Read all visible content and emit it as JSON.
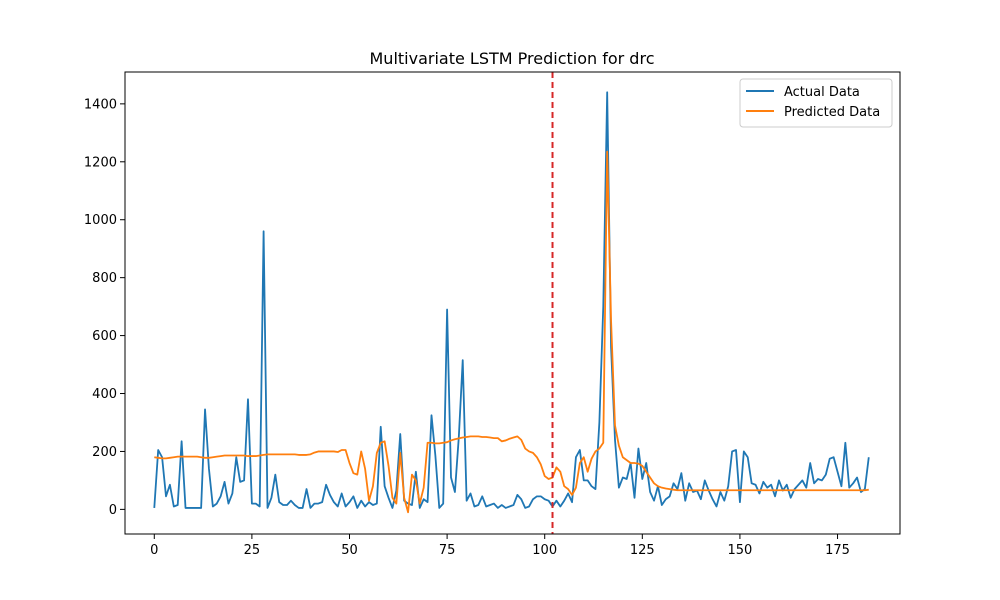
{
  "chart_data": {
    "type": "line",
    "title": "Multivariate LSTM Prediction for drc",
    "xlabel": "",
    "ylabel": "",
    "xlim": [
      -7.5,
      191
    ],
    "ylim": [
      -85,
      1510
    ],
    "x_ticks": [
      0,
      25,
      50,
      75,
      100,
      125,
      150,
      175
    ],
    "y_ticks": [
      0,
      200,
      400,
      600,
      800,
      1000,
      1200,
      1400
    ],
    "grid": false,
    "legend": {
      "position": "top-right"
    },
    "vline": {
      "x": 102,
      "color": "#d62728",
      "style": "dashed"
    },
    "series": [
      {
        "name": "Actual Data",
        "color": "#1f77b4",
        "x_start": 0,
        "values": [
          5,
          205,
          180,
          45,
          85,
          10,
          15,
          235,
          5,
          5,
          5,
          5,
          5,
          345,
          140,
          10,
          20,
          45,
          95,
          20,
          55,
          180,
          95,
          100,
          380,
          20,
          20,
          10,
          960,
          5,
          40,
          120,
          25,
          15,
          15,
          30,
          15,
          5,
          5,
          70,
          5,
          20,
          20,
          25,
          85,
          50,
          25,
          10,
          55,
          10,
          25,
          45,
          5,
          30,
          10,
          25,
          15,
          20,
          285,
          80,
          40,
          5,
          65,
          260,
          30,
          20,
          15,
          130,
          5,
          35,
          25,
          325,
          185,
          5,
          20,
          690,
          110,
          60,
          250,
          515,
          30,
          55,
          10,
          15,
          45,
          10,
          15,
          20,
          5,
          15,
          5,
          10,
          15,
          50,
          35,
          5,
          10,
          35,
          45,
          45,
          35,
          30,
          10,
          30,
          10,
          30,
          55,
          25,
          180,
          205,
          100,
          100,
          80,
          70,
          300,
          700,
          1440,
          560,
          240,
          75,
          110,
          105,
          160,
          40,
          210,
          105,
          160,
          60,
          30,
          80,
          15,
          35,
          45,
          90,
          70,
          125,
          30,
          90,
          60,
          65,
          35,
          100,
          65,
          35,
          10,
          60,
          30,
          80,
          200,
          205,
          25,
          200,
          180,
          90,
          85,
          55,
          95,
          75,
          85,
          45,
          100,
          65,
          85,
          40,
          70,
          85,
          100,
          75,
          160,
          90,
          105,
          100,
          120,
          175,
          180,
          130,
          80,
          230,
          75,
          90,
          110,
          60,
          70,
          180
        ]
      },
      {
        "name": "Predicted Data",
        "color": "#ff7f0e",
        "x_start": 0,
        "values": [
          180,
          178,
          176,
          176,
          178,
          180,
          182,
          182,
          182,
          182,
          182,
          182,
          180,
          178,
          178,
          180,
          182,
          184,
          186,
          186,
          186,
          186,
          186,
          186,
          184,
          184,
          184,
          186,
          188,
          190,
          190,
          190,
          190,
          190,
          190,
          190,
          190,
          188,
          188,
          188,
          190,
          196,
          200,
          200,
          200,
          200,
          200,
          198,
          205,
          205,
          160,
          125,
          120,
          200,
          140,
          30,
          80,
          195,
          230,
          235,
          150,
          40,
          20,
          195,
          40,
          -10,
          120,
          100,
          20,
          75,
          230,
          230,
          228,
          228,
          230,
          232,
          238,
          242,
          245,
          248,
          250,
          252,
          252,
          252,
          250,
          250,
          248,
          246,
          246,
          235,
          238,
          244,
          248,
          252,
          240,
          210,
          200,
          195,
          180,
          155,
          115,
          105,
          110,
          145,
          130,
          80,
          70,
          50,
          75,
          160,
          180,
          130,
          175,
          200,
          210,
          230,
          1235,
          650,
          290,
          220,
          180,
          170,
          160,
          160,
          158,
          150,
          130,
          110,
          90,
          80,
          75,
          72,
          70,
          68,
          66,
          66,
          66,
          66,
          66,
          66,
          66,
          66,
          66,
          66,
          66,
          66,
          66,
          66,
          66,
          66,
          66,
          66,
          66,
          66,
          66,
          66,
          66,
          66,
          66,
          66,
          66,
          66,
          66,
          66,
          66,
          66,
          66,
          66,
          66,
          66,
          66,
          66,
          66,
          66,
          66,
          66,
          66,
          66,
          66,
          66,
          66,
          66,
          66,
          68
        ]
      }
    ]
  }
}
